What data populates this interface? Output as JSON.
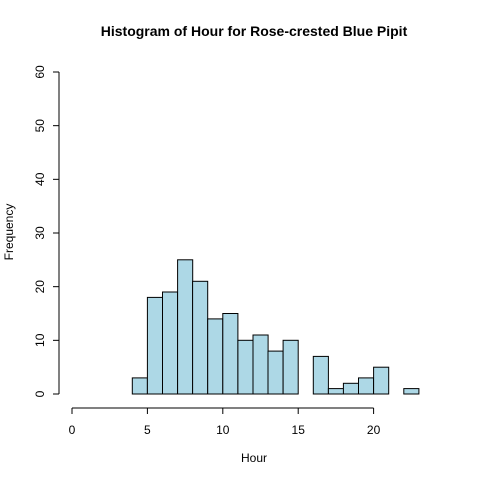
{
  "chart_data": {
    "type": "bar",
    "title": "Histogram of Hour for Rose-crested Blue Pipit",
    "xlabel": "Hour",
    "ylabel": "Frequency",
    "xlim": [
      0,
      24
    ],
    "ylim": [
      0,
      60
    ],
    "x_ticks": [
      0,
      5,
      10,
      15,
      20
    ],
    "y_ticks": [
      0,
      10,
      20,
      30,
      40,
      50,
      60
    ],
    "bin_width": 1,
    "bins": [
      {
        "start": 4,
        "end": 5,
        "count": 3
      },
      {
        "start": 5,
        "end": 6,
        "count": 18
      },
      {
        "start": 6,
        "end": 7,
        "count": 19
      },
      {
        "start": 7,
        "end": 8,
        "count": 25
      },
      {
        "start": 8,
        "end": 9,
        "count": 21
      },
      {
        "start": 9,
        "end": 10,
        "count": 14
      },
      {
        "start": 10,
        "end": 11,
        "count": 15
      },
      {
        "start": 11,
        "end": 12,
        "count": 10
      },
      {
        "start": 12,
        "end": 13,
        "count": 11
      },
      {
        "start": 13,
        "end": 14,
        "count": 8
      },
      {
        "start": 14,
        "end": 15,
        "count": 10
      },
      {
        "start": 15,
        "end": 16,
        "count": 0
      },
      {
        "start": 16,
        "end": 17,
        "count": 7
      },
      {
        "start": 17,
        "end": 18,
        "count": 1
      },
      {
        "start": 18,
        "end": 19,
        "count": 2
      },
      {
        "start": 19,
        "end": 20,
        "count": 3
      },
      {
        "start": 20,
        "end": 21,
        "count": 5
      },
      {
        "start": 21,
        "end": 22,
        "count": 0
      },
      {
        "start": 22,
        "end": 23,
        "count": 1
      }
    ],
    "bar_fill": "#add8e6",
    "bar_stroke": "#000000",
    "grid": false,
    "legend": false
  }
}
